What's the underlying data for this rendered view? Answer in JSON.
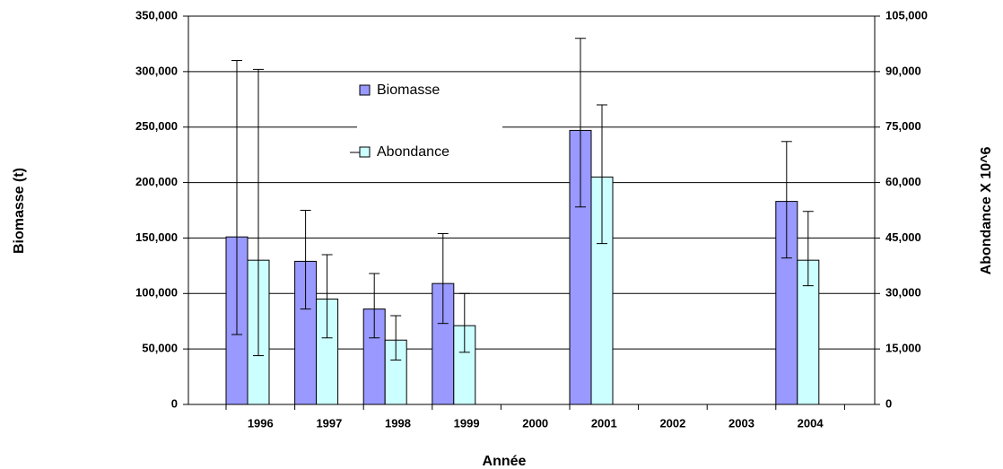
{
  "chart_data": {
    "type": "bar",
    "x_label": "Année",
    "y_label": "Biomasse (t)",
    "y2_label": "Abondance X 10^6",
    "categories": [
      "1996",
      "1997",
      "1998",
      "1999",
      "2000",
      "2001",
      "2002",
      "2003",
      "2004"
    ],
    "series": [
      {
        "name": "Biomasse",
        "color": "#9999ff",
        "axis": "y",
        "values": [
          151000,
          129000,
          86000,
          109000,
          null,
          247000,
          null,
          null,
          183000
        ],
        "error_plus": [
          159000,
          46000,
          32000,
          45000,
          null,
          83000,
          null,
          null,
          54000
        ],
        "error_minus": [
          88000,
          43000,
          26000,
          36000,
          null,
          69000,
          null,
          null,
          51000
        ]
      },
      {
        "name": "Abondance",
        "color": "#ccffff",
        "axis": "y2",
        "values": [
          39000,
          28500,
          17400,
          21300,
          null,
          61500,
          null,
          null,
          39000
        ],
        "error_plus": [
          51600,
          12000,
          6600,
          8700,
          null,
          19500,
          null,
          null,
          13200
        ],
        "error_minus": [
          25800,
          10500,
          5400,
          7200,
          null,
          18000,
          null,
          null,
          6900
        ]
      }
    ],
    "ylim": [
      0,
      350000
    ],
    "yticks": [
      0,
      {
        "value": 50000,
        "label": "50,000"
      },
      {
        "value": 100000,
        "label": "100,000"
      },
      {
        "value": 150000,
        "label": "150,000"
      },
      {
        "value": 200000,
        "label": "200,000"
      },
      {
        "value": 250000,
        "label": "250,000"
      },
      {
        "value": 300000,
        "label": "300,000"
      },
      {
        "value": 350000,
        "label": "350,000"
      }
    ],
    "y2lim": [
      0,
      105000
    ],
    "y2ticks": [
      0,
      {
        "value": 15000,
        "label": "15,000"
      },
      {
        "value": 30000,
        "label": "30,000"
      },
      {
        "value": 45000,
        "label": "45,000"
      },
      {
        "value": 60000,
        "label": "60,000"
      },
      {
        "value": 75000,
        "label": "75,000"
      },
      {
        "value": 90000,
        "label": "90,000"
      },
      {
        "value": 105000,
        "label": "105,000"
      }
    ],
    "grid": true
  }
}
